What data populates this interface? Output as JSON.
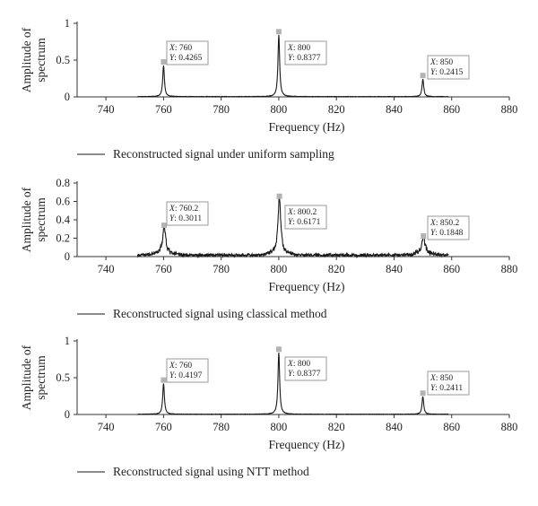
{
  "chart_data": [
    {
      "type": "line",
      "xlabel": "Frequency (Hz)",
      "ylabel_lines": [
        "Amplitude of",
        "spectrum"
      ],
      "xlim": [
        730,
        880
      ],
      "ylim": [
        0,
        1
      ],
      "x_ticks": [
        "740",
        "760",
        "780",
        "800",
        "820",
        "840",
        "860",
        "880"
      ],
      "y_ticks": [
        "0",
        "0.5",
        "1"
      ],
      "legend": "Reconstructed signal under uniform sampling",
      "noise": 0.006,
      "peaks": [
        {
          "x": 760,
          "y": 0.4265
        },
        {
          "x": 800,
          "y": 0.8377
        },
        {
          "x": 850,
          "y": 0.2415
        }
      ],
      "datatips": [
        {
          "x_label": "X",
          "x_value": ": 760",
          "y_label": "Y",
          "y_value": ": 0.4265"
        },
        {
          "x_label": "X",
          "x_value": ": 800",
          "y_label": "Y",
          "y_value": ": 0.8377"
        },
        {
          "x_label": "X",
          "x_value": ": 850",
          "y_label": "Y",
          "y_value": ": 0.2415"
        }
      ]
    },
    {
      "type": "line",
      "xlabel": "Frequency (Hz)",
      "ylabel_lines": [
        "Amplitude of",
        "spectrum"
      ],
      "xlim": [
        730,
        880
      ],
      "ylim": [
        0,
        0.8
      ],
      "x_ticks": [
        "740",
        "760",
        "780",
        "800",
        "820",
        "840",
        "860",
        "880"
      ],
      "y_ticks": [
        "0",
        "0.2",
        "0.4",
        "0.6",
        "0.8"
      ],
      "legend": "Reconstructed signal using classical method",
      "noise": 0.03,
      "peaks": [
        {
          "x": 760.2,
          "y": 0.3011
        },
        {
          "x": 800.2,
          "y": 0.6171
        },
        {
          "x": 850.2,
          "y": 0.1848
        }
      ],
      "datatips": [
        {
          "x_label": "X",
          "x_value": ": 760.2",
          "y_label": "Y",
          "y_value": ": 0.3011"
        },
        {
          "x_label": "X",
          "x_value": ": 800.2",
          "y_label": "Y",
          "y_value": ": 0.6171"
        },
        {
          "x_label": "X",
          "x_value": ": 850.2",
          "y_label": "Y",
          "y_value": ": 0.1848"
        }
      ]
    },
    {
      "type": "line",
      "xlabel": "Frequency (Hz)",
      "ylabel_lines": [
        "Amplitude of",
        "spectrum"
      ],
      "xlim": [
        730,
        880
      ],
      "ylim": [
        0,
        1
      ],
      "x_ticks": [
        "740",
        "760",
        "780",
        "800",
        "820",
        "840",
        "860",
        "880"
      ],
      "y_ticks": [
        "0",
        "0.5",
        "1"
      ],
      "legend": "Reconstructed signal using NTT method",
      "noise": 0.006,
      "peaks": [
        {
          "x": 760,
          "y": 0.4197
        },
        {
          "x": 800,
          "y": 0.8377
        },
        {
          "x": 850,
          "y": 0.2411
        }
      ],
      "datatips": [
        {
          "x_label": "X",
          "x_value": ": 760",
          "y_label": "Y",
          "y_value": ": 0.4197"
        },
        {
          "x_label": "X",
          "x_value": ": 800",
          "y_label": "Y",
          "y_value": ": 0.8377"
        },
        {
          "x_label": "X",
          "x_value": ": 850",
          "y_label": "Y",
          "y_value": ": 0.2411"
        }
      ]
    }
  ],
  "colors": {
    "line": "#1a1a1a",
    "marker": "#b3b3b3",
    "datatip_border": "#9a9a9a",
    "text": "#222222"
  }
}
